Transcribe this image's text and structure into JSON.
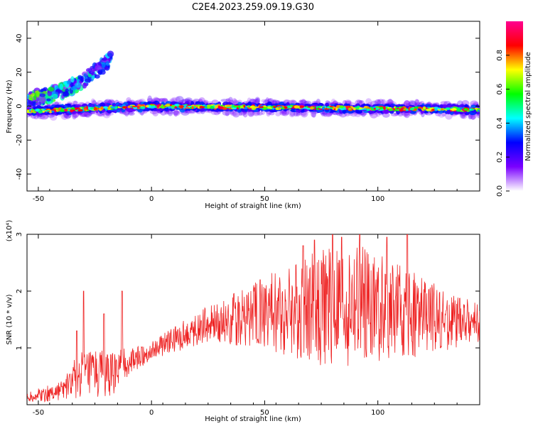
{
  "title": "C2E4.2023.259.09.19.G30",
  "chart_data": [
    {
      "type": "heatmap",
      "xlabel": "Height of straight line (km)",
      "ylabel": "Frequency (Hz)",
      "xlim": [
        -55,
        145
      ],
      "ylim": [
        -50,
        50
      ],
      "x_ticks": [
        -50,
        0,
        50,
        100
      ],
      "y_ticks": [
        -40,
        -20,
        0,
        20,
        40
      ],
      "colorbar": {
        "label": "Normalized spectral amplitude",
        "range": [
          0,
          1
        ],
        "ticks": [
          "0.0",
          "0.2",
          "0.4",
          "0.6",
          "0.8"
        ],
        "tick_values": [
          0.0,
          0.2,
          0.4,
          0.6,
          0.8
        ],
        "colormap": [
          "#ffffff",
          "#7a00ff",
          "#0000ff",
          "#00ffff",
          "#00ff00",
          "#ffff00",
          "#ff0000",
          "#ff0090"
        ]
      },
      "features": [
        {
          "name": "main_line",
          "x_range": [
            -55,
            145
          ],
          "freq_start": -3,
          "freq_mid": 0,
          "freq_end": -2
        },
        {
          "name": "rising_branch",
          "x_range": [
            -55,
            -18
          ],
          "freq_start": 5,
          "freq_end": 28
        }
      ]
    },
    {
      "type": "line",
      "xlabel": "Height of straight line (km)",
      "ylabel": "SNR (10 * v/v)",
      "y_multiplier": "(x10⁴)",
      "xlim": [
        -55,
        145
      ],
      "ylim": [
        0,
        3
      ],
      "x_ticks": [
        -50,
        0,
        50,
        100
      ],
      "y_ticks": [
        1,
        2,
        3
      ],
      "color": "#ee2222",
      "envelope": {
        "x": [
          -55,
          -45,
          -38,
          -33,
          -25,
          -18,
          -12,
          -5,
          0,
          10,
          20,
          30,
          40,
          50,
          60,
          70,
          80,
          90,
          100,
          110,
          120,
          130,
          140,
          145
        ],
        "center": [
          0.15,
          0.2,
          0.3,
          0.5,
          0.55,
          0.5,
          0.7,
          0.85,
          0.95,
          1.15,
          1.35,
          1.45,
          1.55,
          1.6,
          1.65,
          1.7,
          1.75,
          1.75,
          1.7,
          1.6,
          1.55,
          1.5,
          1.45,
          1.45
        ],
        "spread": [
          0.1,
          0.15,
          0.2,
          0.4,
          0.45,
          0.4,
          0.3,
          0.2,
          0.15,
          0.25,
          0.3,
          0.35,
          0.55,
          0.7,
          0.8,
          1.0,
          1.1,
          1.1,
          0.95,
          0.85,
          0.7,
          0.55,
          0.4,
          0.35
        ]
      },
      "peaks": [
        {
          "x": -33,
          "y": 1.3
        },
        {
          "x": -30,
          "y": 2.0
        },
        {
          "x": -21,
          "y": 1.6
        },
        {
          "x": -13,
          "y": 2.0
        },
        {
          "x": 48,
          "y": 2.2
        },
        {
          "x": 67,
          "y": 2.8
        },
        {
          "x": 72,
          "y": 2.9
        },
        {
          "x": 80,
          "y": 3.05
        },
        {
          "x": 84,
          "y": 2.95
        },
        {
          "x": 92,
          "y": 3.0
        },
        {
          "x": 104,
          "y": 2.95
        },
        {
          "x": 113,
          "y": 3.0
        }
      ]
    }
  ]
}
